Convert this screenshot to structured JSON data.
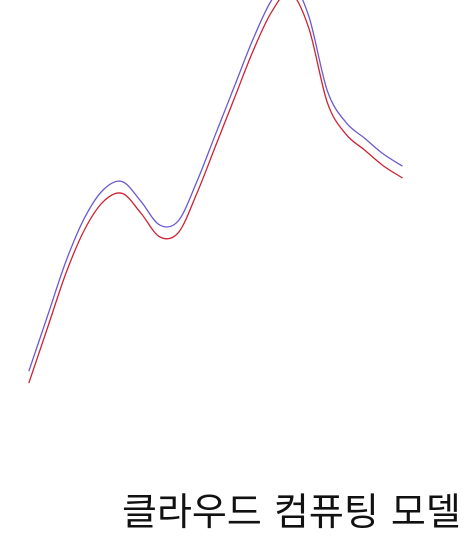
{
  "caption": "클라우드 컴퓨팅 모델",
  "chart_data": {
    "type": "line",
    "title": "",
    "xlabel": "",
    "ylabel": "",
    "grid": false,
    "axes_visible": false,
    "legend": "none",
    "x": [
      0,
      5,
      10,
      15,
      20,
      25,
      30,
      35,
      40,
      45,
      50,
      55,
      60,
      65,
      70,
      75,
      80,
      85,
      90,
      95,
      100
    ],
    "xlim": [
      0,
      100
    ],
    "ylim": [
      0,
      100
    ],
    "series": [
      {
        "color": "#6a5acd",
        "values": [
          12,
          26,
          40,
          51,
          58,
          60,
          55,
          49,
          50,
          60,
          72,
          84,
          96,
          106,
          111,
          102,
          83,
          75,
          71,
          67,
          64
        ]
      },
      {
        "color": "#cc2233",
        "values": [
          9,
          23,
          37,
          48,
          55,
          57,
          52,
          46,
          47,
          57,
          69,
          81,
          93,
          103,
          108,
          99,
          80,
          72,
          68,
          64,
          61
        ]
      }
    ]
  }
}
